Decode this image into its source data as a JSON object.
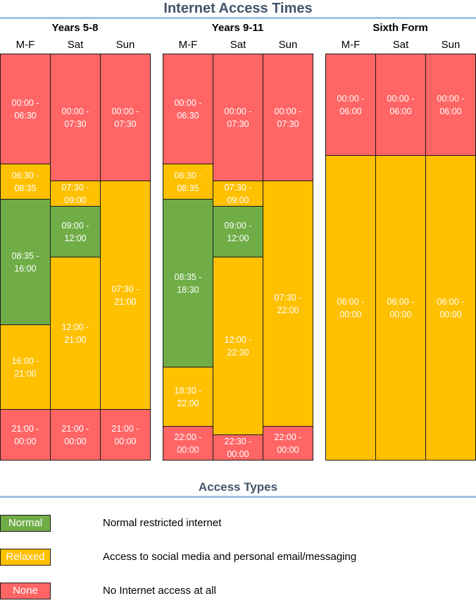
{
  "title": "Internet Access Times",
  "colors": {
    "none": "#ff6565",
    "relaxed": "#ffc000",
    "normal": "#70ad47",
    "title_text": "#44546a",
    "rule": "#9dc3e6"
  },
  "groups": [
    {
      "name": "Years 5-8",
      "columns": [
        {
          "day": "M-F",
          "blocks": [
            {
              "type": "none",
              "label": "00:00 -\n06:30"
            },
            {
              "type": "relaxed",
              "label": "06:30 -\n08:35"
            },
            {
              "type": "normal",
              "label": "08:35 -\n16:00"
            },
            {
              "type": "relaxed",
              "label": "16:00 -\n21:00"
            },
            {
              "type": "none",
              "label": "21:00 -\n00:00"
            }
          ]
        },
        {
          "day": "Sat",
          "blocks": [
            {
              "type": "none",
              "label": "00:00 -\n07:30"
            },
            {
              "type": "relaxed",
              "label": "07:30 -\n09:00"
            },
            {
              "type": "normal",
              "label": "09:00 -\n12:00"
            },
            {
              "type": "relaxed",
              "label": "12:00 -\n21:00"
            },
            {
              "type": "none",
              "label": "21:00 -\n00:00"
            }
          ]
        },
        {
          "day": "Sun",
          "blocks": [
            {
              "type": "none",
              "label": "00:00 -\n07:30"
            },
            {
              "type": "relaxed",
              "label": "07:30 -\n21:00"
            },
            {
              "type": "none",
              "label": "21:00 -\n00:00"
            }
          ]
        }
      ]
    },
    {
      "name": "Years 9-11",
      "columns": [
        {
          "day": "M-F",
          "blocks": [
            {
              "type": "none",
              "label": "00:00 -\n06:30"
            },
            {
              "type": "relaxed",
              "label": "06:30 -\n08:35"
            },
            {
              "type": "normal",
              "label": "08:35 -\n18:30"
            },
            {
              "type": "relaxed",
              "label": "18:30 -\n22:00"
            },
            {
              "type": "none",
              "label": "22:00 -\n00:00"
            }
          ]
        },
        {
          "day": "Sat",
          "blocks": [
            {
              "type": "none",
              "label": "00:00 -\n07:30"
            },
            {
              "type": "relaxed",
              "label": "07:30 -\n09:00"
            },
            {
              "type": "normal",
              "label": "09:00 -\n12:00"
            },
            {
              "type": "relaxed",
              "label": "12:00 -\n22:30"
            },
            {
              "type": "none",
              "label": "22:30 -\n00:00"
            }
          ]
        },
        {
          "day": "Sun",
          "blocks": [
            {
              "type": "none",
              "label": "00:00 -\n07:30"
            },
            {
              "type": "relaxed",
              "label": "07:30 -\n22:00"
            },
            {
              "type": "none",
              "label": "22:00 -\n00:00"
            }
          ]
        }
      ]
    },
    {
      "name": "Sixth Form",
      "columns": [
        {
          "day": "M-F",
          "blocks": [
            {
              "type": "none",
              "label": "00:00 -\n06:00"
            },
            {
              "type": "relaxed",
              "label": "06:00 -\n00:00"
            }
          ]
        },
        {
          "day": "Sat",
          "blocks": [
            {
              "type": "none",
              "label": "00:00 -\n06:00"
            },
            {
              "type": "relaxed",
              "label": "06:00 -\n00:00"
            }
          ]
        },
        {
          "day": "Sun",
          "blocks": [
            {
              "type": "none",
              "label": "00:00 -\n06:00"
            },
            {
              "type": "relaxed",
              "label": "06:00 -\n00:00"
            }
          ]
        }
      ]
    }
  ],
  "legend": {
    "title": "Access Types",
    "items": [
      {
        "type": "normal",
        "label": "Normal",
        "description": "Normal restricted internet"
      },
      {
        "type": "relaxed",
        "label": "Relaxed",
        "description": "Access to social media and personal email/messaging"
      },
      {
        "type": "none",
        "label": "None",
        "description": "No Internet access at all"
      }
    ]
  }
}
